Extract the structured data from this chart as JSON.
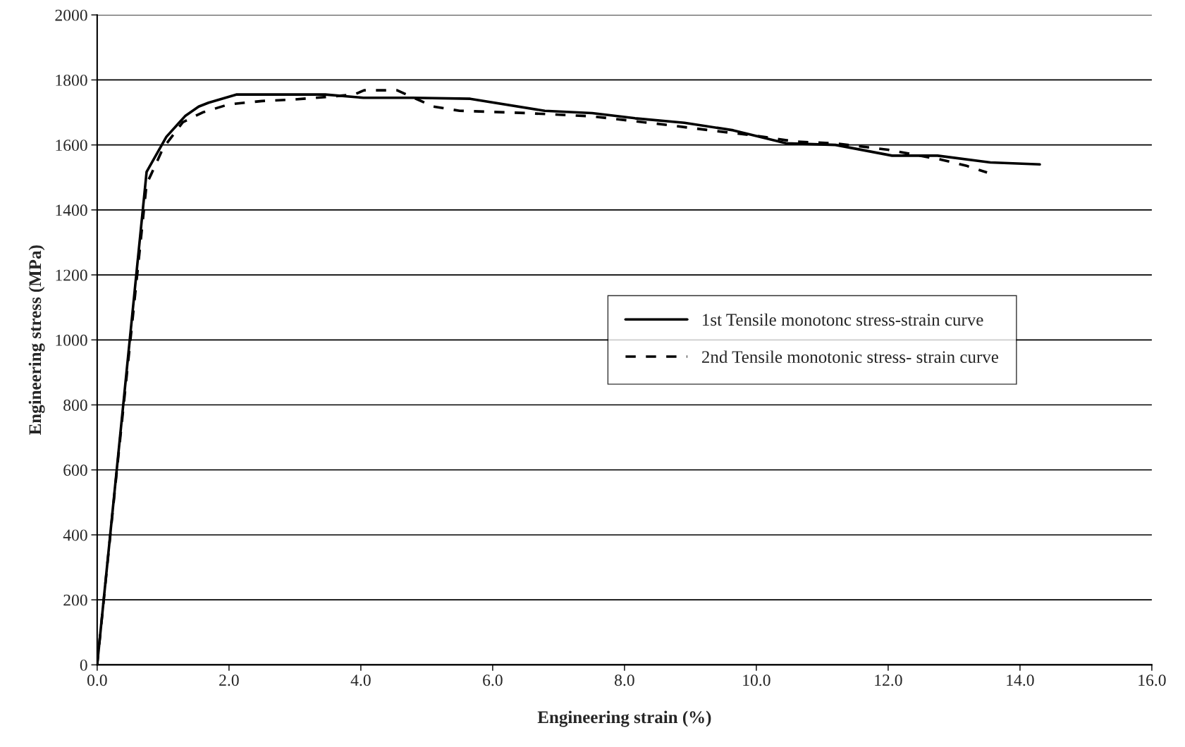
{
  "chart_data": {
    "type": "line",
    "xlabel": "Engineering strain (%)",
    "ylabel": "Engineering stress (MPa)",
    "xlim": [
      0,
      16
    ],
    "ylim": [
      0,
      2000
    ],
    "xticks": [
      {
        "value": 0,
        "label": "0.0"
      },
      {
        "value": 2,
        "label": "2.0"
      },
      {
        "value": 4,
        "label": "4.0"
      },
      {
        "value": 6,
        "label": "6.0"
      },
      {
        "value": 8,
        "label": "8.0"
      },
      {
        "value": 10,
        "label": "10.0"
      },
      {
        "value": 12,
        "label": "12.0"
      },
      {
        "value": 14,
        "label": "14.0"
      },
      {
        "value": 16,
        "label": "16.0"
      }
    ],
    "yticks": [
      0,
      200,
      400,
      600,
      800,
      1000,
      1200,
      1400,
      1600,
      1800,
      2000
    ],
    "grid": "y",
    "legend": "center right",
    "marker": "none",
    "series": [
      {
        "name": "1st Tensile monotonc stress-strain curve",
        "color": "#000000",
        "line_style": "solid",
        "x": [
          0,
          0.75,
          1.05,
          1.34,
          1.54,
          1.69,
          2.11,
          3.46,
          4.04,
          4.78,
          5.66,
          6.79,
          7.51,
          8.16,
          8.91,
          9.65,
          10.45,
          11.2,
          12.06,
          12.75,
          13.55,
          14.3
        ],
        "values": [
          0,
          1517,
          1625,
          1690,
          1718,
          1730,
          1755,
          1755,
          1745,
          1745,
          1742,
          1705,
          1698,
          1682,
          1668,
          1645,
          1605,
          1600,
          1567,
          1567,
          1546,
          1540
        ]
      },
      {
        "name": "2nd Tensile monotonic stress- strain curve",
        "color": "#000000",
        "line_style": "dashed",
        "x": [
          0,
          0.3,
          0.75,
          0.82,
          1.0,
          1.3,
          1.6,
          2.0,
          2.5,
          3.0,
          3.5,
          3.9,
          4.05,
          4.55,
          4.75,
          5.1,
          5.5,
          6.5,
          7.5,
          8.5,
          9.5,
          10.0,
          10.6,
          11.2,
          12.0,
          12.8,
          13.2,
          13.5
        ],
        "values": [
          0,
          600,
          1480,
          1510,
          1590,
          1670,
          1700,
          1725,
          1735,
          1740,
          1748,
          1755,
          1768,
          1768,
          1750,
          1718,
          1705,
          1698,
          1688,
          1665,
          1640,
          1628,
          1610,
          1605,
          1585,
          1555,
          1535,
          1515
        ]
      }
    ]
  }
}
